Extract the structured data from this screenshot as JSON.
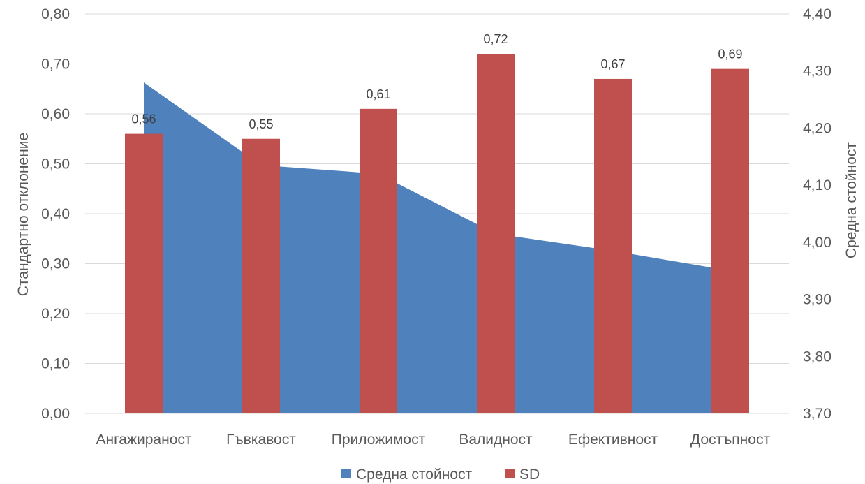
{
  "chart_data": {
    "type": "bar",
    "categories": [
      "Ангажираност",
      "Гъвкавост",
      "Приложимост",
      "Валидност",
      "Ефективност",
      "Достъпност"
    ],
    "series": [
      {
        "name": "Средна стойност",
        "kind": "area",
        "axis": "right",
        "values": [
          4.28,
          4.135,
          4.12,
          4.015,
          3.985,
          3.95
        ],
        "color": "#4f81bd"
      },
      {
        "name": "SD",
        "kind": "bar",
        "axis": "left",
        "values": [
          0.56,
          0.55,
          0.61,
          0.72,
          0.67,
          0.69
        ],
        "labels": [
          "0,56",
          "0,55",
          "0,61",
          "0,72",
          "0,67",
          "0,69"
        ],
        "color": "#c0504d"
      }
    ],
    "y_left": {
      "label": "Стандартно отклонение",
      "ylim": [
        0,
        0.8
      ],
      "ticks": [
        "0,00",
        "0,10",
        "0,20",
        "0,30",
        "0,40",
        "0,50",
        "0,60",
        "0,70",
        "0,80"
      ]
    },
    "y_right": {
      "label": "Средна стойност",
      "ylim": [
        3.7,
        4.4
      ],
      "ticks": [
        "3,70",
        "3,80",
        "3,90",
        "4,00",
        "4,10",
        "4,20",
        "4,30",
        "4,40"
      ]
    },
    "grid": true,
    "legend": "bottom",
    "gridColor": "#d9d9d9"
  }
}
